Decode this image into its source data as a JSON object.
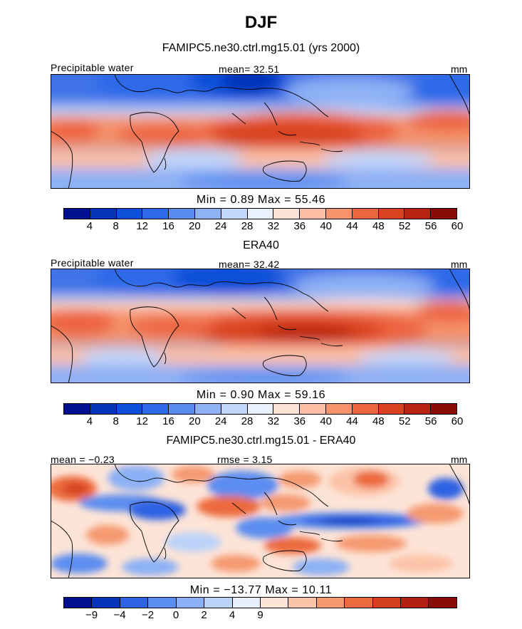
{
  "season_title": "DJF",
  "panels": [
    {
      "subtitle": "FAMIPC5.ne30.ctrl.mg15.01 (yrs 2000)",
      "left_label": "Precipitable water",
      "center_label": "mean=  32.51",
      "right_label": "mm",
      "minmax": "Min =    0.89  Max =   55.46",
      "colorbar": {
        "colors": [
          "#000f8e",
          "#0633b8",
          "#0d4fd8",
          "#2f6ae8",
          "#5a8cf0",
          "#8fb1f5",
          "#c3d6f9",
          "#eaf1fd",
          "#fde3d6",
          "#fbbea4",
          "#f5936d",
          "#ed6440",
          "#d8421f",
          "#b82210",
          "#8a0c06"
        ],
        "ticks": [
          "4",
          "8",
          "12",
          "16",
          "20",
          "24",
          "28",
          "32",
          "36",
          "40",
          "44",
          "48",
          "52",
          "56",
          "60"
        ]
      }
    },
    {
      "subtitle": "ERA40",
      "left_label": "Precipitable water",
      "center_label": "mean=  32.42",
      "right_label": "mm",
      "minmax": "Min =    0.90  Max =   59.16",
      "colorbar": {
        "colors": [
          "#000f8e",
          "#0633b8",
          "#0d4fd8",
          "#2f6ae8",
          "#5a8cf0",
          "#8fb1f5",
          "#c3d6f9",
          "#eaf1fd",
          "#fde3d6",
          "#fbbea4",
          "#f5936d",
          "#ed6440",
          "#d8421f",
          "#b82210",
          "#8a0c06"
        ],
        "ticks": [
          "4",
          "8",
          "12",
          "16",
          "20",
          "24",
          "28",
          "32",
          "36",
          "40",
          "44",
          "48",
          "52",
          "56",
          "60"
        ]
      }
    },
    {
      "subtitle": "FAMIPC5.ne30.ctrl.mg15.01 - ERA40",
      "left_label": "mean =  −0.23",
      "center_label": "rmse =    3.15",
      "right_label": "mm",
      "minmax": "Min =  −13.77  Max =   10.11",
      "colorbar": {
        "colors": [
          "#000f8e",
          "#0633b8",
          "#2d62e2",
          "#5c8df0",
          "#8cb0f5",
          "#bcd3f9",
          "#e6f0fd",
          "#fde4d7",
          "#fbc3a8",
          "#f5996f",
          "#ec6a3e",
          "#d4401c",
          "#b12010",
          "#8a0c06"
        ],
        "ticks": [
          "−9",
          "−4",
          "−2",
          "0",
          "2",
          "4",
          "9"
        ]
      }
    }
  ],
  "legend_colors": {
    "land_outline": "#000000",
    "background": "#ffffff"
  }
}
